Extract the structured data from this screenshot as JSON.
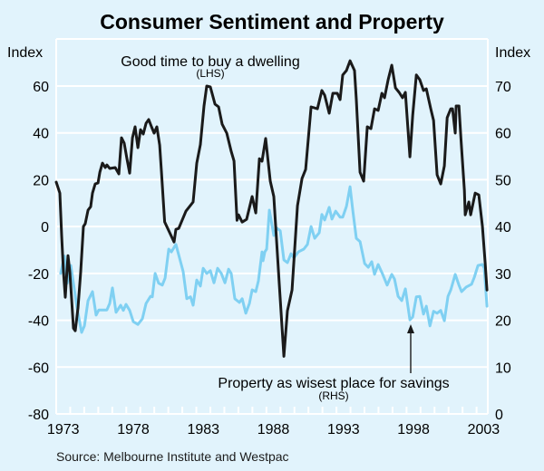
{
  "chart_data": {
    "type": "line",
    "title": "Consumer Sentiment and Property",
    "source": "Source: Melbourne Institute and Westpac",
    "xlabel": "",
    "x_range": [
      1973,
      2003.8
    ],
    "x_ticks": [
      "1973",
      "1978",
      "1983",
      "1988",
      "1993",
      "1998",
      "2003"
    ],
    "y_left": {
      "label": "Index",
      "range": [
        -80,
        60
      ],
      "ticks": [
        "60",
        "40",
        "20",
        "0",
        "-20",
        "-40",
        "-60",
        "-80"
      ],
      "tick_values": [
        60,
        40,
        20,
        0,
        -20,
        -40,
        -60,
        -80
      ]
    },
    "y_right": {
      "label": "Index",
      "range": [
        0,
        70
      ],
      "ticks": [
        "70",
        "60",
        "50",
        "40",
        "30",
        "20",
        "10",
        "0"
      ],
      "tick_values": [
        70,
        60,
        50,
        40,
        30,
        20,
        10,
        0
      ]
    },
    "grid": true,
    "series": [
      {
        "name": "Good time to buy a dwelling",
        "axis_note": "(LHS)",
        "axis": "left",
        "color": "#1a1a1a",
        "points": [
          [
            1973.0,
            19.0
          ],
          [
            1973.26,
            14.3
          ],
          [
            1973.39,
            -3.9
          ],
          [
            1973.52,
            -19.4
          ],
          [
            1973.65,
            -30.2
          ],
          [
            1973.71,
            -24.0
          ],
          [
            1973.84,
            -12.4
          ],
          [
            1973.97,
            -19.4
          ],
          [
            1974.1,
            -31.0
          ],
          [
            1974.23,
            -43.4
          ],
          [
            1974.36,
            -44.5
          ],
          [
            1974.55,
            -34.8
          ],
          [
            1974.75,
            -19.4
          ],
          [
            1974.94,
            0.0
          ],
          [
            1975.07,
            1.2
          ],
          [
            1975.27,
            7.0
          ],
          [
            1975.46,
            8.5
          ],
          [
            1975.59,
            14.3
          ],
          [
            1975.78,
            18.2
          ],
          [
            1975.98,
            18.6
          ],
          [
            1976.11,
            23.2
          ],
          [
            1976.3,
            27.1
          ],
          [
            1976.5,
            25.2
          ],
          [
            1976.62,
            26.3
          ],
          [
            1976.82,
            24.8
          ],
          [
            1977.21,
            25.2
          ],
          [
            1977.47,
            22.5
          ],
          [
            1977.66,
            37.9
          ],
          [
            1977.85,
            35.6
          ],
          [
            1978.05,
            29.0
          ],
          [
            1978.24,
            22.8
          ],
          [
            1978.44,
            37.9
          ],
          [
            1978.63,
            42.6
          ],
          [
            1978.83,
            33.7
          ],
          [
            1979.02,
            41.4
          ],
          [
            1979.21,
            39.5
          ],
          [
            1979.41,
            44.1
          ],
          [
            1979.6,
            45.7
          ],
          [
            1979.8,
            42.6
          ],
          [
            1979.99,
            39.9
          ],
          [
            1980.18,
            42.6
          ],
          [
            1980.38,
            34.8
          ],
          [
            1980.51,
            23.2
          ],
          [
            1980.74,
            2.0
          ],
          [
            1981.41,
            -6.6
          ],
          [
            1981.54,
            -1.2
          ],
          [
            1981.74,
            -0.8
          ],
          [
            1982.26,
            6.6
          ],
          [
            1982.77,
            10.5
          ],
          [
            1983.03,
            27.1
          ],
          [
            1983.29,
            35.0
          ],
          [
            1983.55,
            51.5
          ],
          [
            1983.74,
            60.0
          ],
          [
            1984.0,
            59.6
          ],
          [
            1984.33,
            52.3
          ],
          [
            1984.59,
            51.1
          ],
          [
            1984.84,
            43.7
          ],
          [
            1985.17,
            39.9
          ],
          [
            1985.49,
            32.1
          ],
          [
            1985.69,
            28.0
          ],
          [
            1985.9,
            2.7
          ],
          [
            1986.01,
            5.0
          ],
          [
            1986.27,
            1.9
          ],
          [
            1986.59,
            3.1
          ],
          [
            1986.98,
            12.8
          ],
          [
            1987.24,
            5.8
          ],
          [
            1987.5,
            29.0
          ],
          [
            1987.69,
            27.9
          ],
          [
            1987.95,
            37.6
          ],
          [
            1988.28,
            19.4
          ],
          [
            1988.53,
            12.8
          ],
          [
            1988.92,
            -24.4
          ],
          [
            1989.25,
            -55.4
          ],
          [
            1989.5,
            -36.0
          ],
          [
            1989.83,
            -27.1
          ],
          [
            1990.22,
            8.9
          ],
          [
            1990.54,
            20.5
          ],
          [
            1990.8,
            24.4
          ],
          [
            1991.19,
            51.1
          ],
          [
            1991.64,
            50.3
          ],
          [
            1991.96,
            58.1
          ],
          [
            1992.16,
            56.1
          ],
          [
            1992.48,
            48.4
          ],
          [
            1992.74,
            56.9
          ],
          [
            1993.06,
            56.9
          ],
          [
            1993.26,
            54.2
          ],
          [
            1993.45,
            64.7
          ],
          [
            1993.71,
            66.6
          ],
          [
            1993.97,
            70.8
          ],
          [
            1994.29,
            66.6
          ],
          [
            1994.42,
            54.2
          ],
          [
            1994.68,
            23.2
          ],
          [
            1994.94,
            19.4
          ],
          [
            1995.2,
            42.6
          ],
          [
            1995.46,
            41.8
          ],
          [
            1995.72,
            50.3
          ],
          [
            1995.98,
            49.6
          ],
          [
            1996.24,
            56.9
          ],
          [
            1996.43,
            55.0
          ],
          [
            1996.69,
            62.7
          ],
          [
            1996.95,
            68.9
          ],
          [
            1997.21,
            59.2
          ],
          [
            1997.47,
            57.3
          ],
          [
            1997.72,
            55.0
          ],
          [
            1997.92,
            57.3
          ],
          [
            1998.24,
            29.8
          ],
          [
            1998.44,
            47.6
          ],
          [
            1998.7,
            64.7
          ],
          [
            1998.95,
            62.7
          ],
          [
            1999.21,
            58.1
          ],
          [
            1999.41,
            58.8
          ],
          [
            1999.73,
            50.3
          ],
          [
            1999.93,
            45.3
          ],
          [
            2000.18,
            22.1
          ],
          [
            2000.44,
            18.2
          ],
          [
            2000.7,
            25.9
          ],
          [
            2000.9,
            46.5
          ],
          [
            2001.16,
            50.3
          ],
          [
            2001.28,
            50.3
          ],
          [
            2001.48,
            39.9
          ],
          [
            2001.54,
            51.5
          ],
          [
            2001.74,
            51.5
          ],
          [
            2001.87,
            38.7
          ],
          [
            2002.13,
            15.5
          ],
          [
            2002.19,
            5.0
          ],
          [
            2002.45,
            10.5
          ],
          [
            2002.58,
            5.0
          ],
          [
            2002.9,
            14.3
          ],
          [
            2003.16,
            13.5
          ],
          [
            2003.42,
            0.0
          ],
          [
            2003.61,
            -15.5
          ],
          [
            2003.74,
            -27.1
          ]
        ]
      },
      {
        "name": "Property as wisest place for savings",
        "axis_note": "(RHS)",
        "axis": "right",
        "color": "#7fd0f2",
        "points": [
          [
            1973.32,
            30.0
          ],
          [
            1973.58,
            33.7
          ],
          [
            1973.78,
            27.9
          ],
          [
            1974.04,
            31.7
          ],
          [
            1974.23,
            27.9
          ],
          [
            1974.49,
            22.6
          ],
          [
            1974.81,
            17.4
          ],
          [
            1975.01,
            18.8
          ],
          [
            1975.27,
            24.2
          ],
          [
            1975.59,
            26.1
          ],
          [
            1975.85,
            21.1
          ],
          [
            1976.04,
            22.2
          ],
          [
            1976.43,
            22.2
          ],
          [
            1976.62,
            22.2
          ],
          [
            1976.82,
            23.6
          ],
          [
            1977.01,
            26.9
          ],
          [
            1977.27,
            21.7
          ],
          [
            1977.6,
            23.2
          ],
          [
            1977.79,
            22.1
          ],
          [
            1977.98,
            23.4
          ],
          [
            1978.24,
            22.1
          ],
          [
            1978.5,
            19.7
          ],
          [
            1978.83,
            19.1
          ],
          [
            1979.15,
            20.3
          ],
          [
            1979.41,
            23.6
          ],
          [
            1979.73,
            25.1
          ],
          [
            1979.86,
            25.0
          ],
          [
            1980.06,
            30.0
          ],
          [
            1980.31,
            27.9
          ],
          [
            1980.57,
            27.5
          ],
          [
            1980.77,
            29.0
          ],
          [
            1981.03,
            35.2
          ],
          [
            1981.22,
            34.6
          ],
          [
            1981.54,
            36.2
          ],
          [
            1981.8,
            33.3
          ],
          [
            1982.06,
            30.4
          ],
          [
            1982.32,
            24.6
          ],
          [
            1982.58,
            25.0
          ],
          [
            1982.77,
            23.2
          ],
          [
            1983.03,
            28.6
          ],
          [
            1983.29,
            27.3
          ],
          [
            1983.49,
            31.1
          ],
          [
            1983.74,
            30.0
          ],
          [
            1984.0,
            30.6
          ],
          [
            1984.26,
            28.0
          ],
          [
            1984.52,
            31.1
          ],
          [
            1984.78,
            30.0
          ],
          [
            1985.04,
            28.0
          ],
          [
            1985.3,
            30.9
          ],
          [
            1985.49,
            30.0
          ],
          [
            1985.75,
            24.6
          ],
          [
            1986.07,
            23.8
          ],
          [
            1986.27,
            24.6
          ],
          [
            1986.53,
            21.5
          ],
          [
            1986.79,
            23.6
          ],
          [
            1986.98,
            26.5
          ],
          [
            1987.24,
            26.1
          ],
          [
            1987.43,
            28.4
          ],
          [
            1987.69,
            34.6
          ],
          [
            1987.76,
            32.7
          ],
          [
            1987.89,
            34.6
          ],
          [
            1988.02,
            35.2
          ],
          [
            1988.21,
            43.5
          ],
          [
            1988.53,
            38.1
          ],
          [
            1988.73,
            39.7
          ],
          [
            1988.99,
            39.1
          ],
          [
            1989.25,
            32.9
          ],
          [
            1989.5,
            32.3
          ],
          [
            1989.76,
            34.2
          ],
          [
            1989.96,
            33.3
          ],
          [
            1990.28,
            34.6
          ],
          [
            1990.67,
            35.2
          ],
          [
            1990.93,
            36.2
          ],
          [
            1991.19,
            40.0
          ],
          [
            1991.45,
            37.5
          ],
          [
            1991.77,
            38.7
          ],
          [
            1991.96,
            42.6
          ],
          [
            1992.16,
            41.4
          ],
          [
            1992.48,
            44.1
          ],
          [
            1992.68,
            41.6
          ],
          [
            1992.94,
            43.3
          ],
          [
            1993.26,
            42.0
          ],
          [
            1993.45,
            42.0
          ],
          [
            1993.71,
            44.3
          ],
          [
            1993.97,
            48.5
          ],
          [
            1994.17,
            43.3
          ],
          [
            1994.42,
            37.5
          ],
          [
            1994.68,
            36.8
          ],
          [
            1995.01,
            32.1
          ],
          [
            1995.27,
            31.3
          ],
          [
            1995.52,
            32.5
          ],
          [
            1995.72,
            29.8
          ],
          [
            1995.98,
            31.9
          ],
          [
            1996.3,
            29.8
          ],
          [
            1996.62,
            27.5
          ],
          [
            1996.95,
            29.8
          ],
          [
            1997.14,
            28.8
          ],
          [
            1997.4,
            25.1
          ],
          [
            1997.66,
            24.2
          ],
          [
            1997.92,
            26.7
          ],
          [
            1998.24,
            20.1
          ],
          [
            1998.44,
            20.7
          ],
          [
            1998.7,
            25.0
          ],
          [
            1998.95,
            25.1
          ],
          [
            1999.21,
            21.3
          ],
          [
            1999.41,
            23.0
          ],
          [
            1999.67,
            18.8
          ],
          [
            1999.93,
            21.9
          ],
          [
            2000.18,
            21.5
          ],
          [
            2000.44,
            22.1
          ],
          [
            2000.7,
            19.9
          ],
          [
            2000.96,
            25.1
          ],
          [
            2001.16,
            26.5
          ],
          [
            2001.48,
            29.8
          ],
          [
            2001.74,
            27.5
          ],
          [
            2001.93,
            26.1
          ],
          [
            2002.26,
            27.1
          ],
          [
            2002.64,
            27.7
          ],
          [
            2002.84,
            29.2
          ],
          [
            2003.1,
            31.7
          ],
          [
            2003.42,
            31.9
          ],
          [
            2003.55,
            31.1
          ],
          [
            2003.74,
            23.0
          ]
        ]
      }
    ],
    "annotations": [
      {
        "text": "Good time to buy a dwelling",
        "sub": "(LHS)"
      },
      {
        "text": "Property as wisest place for savings",
        "sub": "(RHS)",
        "arrow_to": [
          1998.2,
          20.0
        ]
      }
    ]
  }
}
